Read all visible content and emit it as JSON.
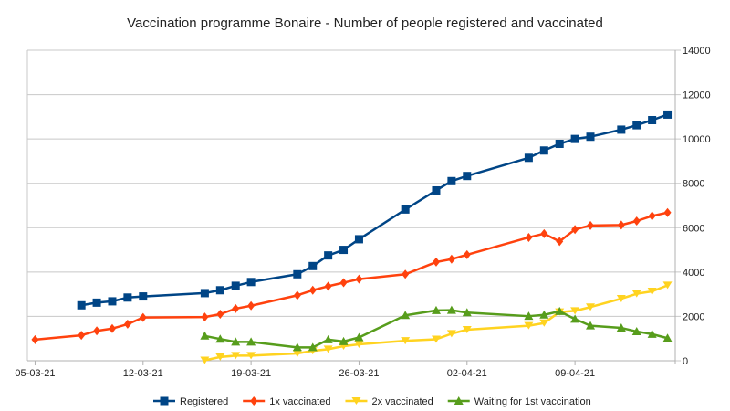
{
  "chart_data": {
    "type": "line",
    "title": "Vaccination programme Bonaire - Number of people registered and vaccinated",
    "xlabel": "",
    "ylabel": "",
    "y_axis_side": "right",
    "ylim": [
      0,
      14000
    ],
    "yticks": [
      0,
      2000,
      4000,
      6000,
      8000,
      10000,
      12000,
      14000
    ],
    "xticks": [
      "05-03-21",
      "12-03-21",
      "19-03-21",
      "26-03-21",
      "02-04-21",
      "09-04-21"
    ],
    "grid": true,
    "legend_position": "bottom",
    "series": [
      {
        "name": "Registered",
        "color": "#004586",
        "marker": "square",
        "x": [
          "08-03-21",
          "09-03-21",
          "10-03-21",
          "11-03-21",
          "12-03-21",
          "16-03-21",
          "17-03-21",
          "18-03-21",
          "19-03-21",
          "22-03-21",
          "23-03-21",
          "24-03-21",
          "25-03-21",
          "26-03-21",
          "29-03-21",
          "31-03-21",
          "01-04-21",
          "02-04-21",
          "06-04-21",
          "07-04-21",
          "08-04-21",
          "09-04-21",
          "10-04-21",
          "12-04-21",
          "13-04-21",
          "14-04-21",
          "15-04-21"
        ],
        "values": [
          2500,
          2620,
          2680,
          2850,
          2900,
          3050,
          3180,
          3380,
          3550,
          3900,
          4270,
          4750,
          5000,
          5480,
          6820,
          7680,
          8100,
          8330,
          9150,
          9480,
          9780,
          10000,
          10100,
          10420,
          10620,
          10850,
          11100
        ]
      },
      {
        "name": "1x vaccinated",
        "color": "#ff420e",
        "marker": "diamond",
        "x": [
          "05-03-21",
          "08-03-21",
          "09-03-21",
          "10-03-21",
          "11-03-21",
          "12-03-21",
          "16-03-21",
          "17-03-21",
          "18-03-21",
          "19-03-21",
          "22-03-21",
          "23-03-21",
          "24-03-21",
          "25-03-21",
          "26-03-21",
          "29-03-21",
          "31-03-21",
          "01-04-21",
          "02-04-21",
          "06-04-21",
          "07-04-21",
          "08-04-21",
          "09-04-21",
          "10-04-21",
          "12-04-21",
          "13-04-21",
          "14-04-21",
          "15-04-21"
        ],
        "values": [
          950,
          1150,
          1350,
          1450,
          1650,
          1950,
          1970,
          2100,
          2350,
          2480,
          2950,
          3180,
          3360,
          3520,
          3680,
          3900,
          4450,
          4580,
          4780,
          5560,
          5730,
          5380,
          5920,
          6100,
          6120,
          6300,
          6530,
          6680
        ]
      },
      {
        "name": "2x vaccinated",
        "color": "#ffd320",
        "marker": "triangle-down",
        "x": [
          "16-03-21",
          "17-03-21",
          "18-03-21",
          "19-03-21",
          "22-03-21",
          "23-03-21",
          "24-03-21",
          "25-03-21",
          "26-03-21",
          "29-03-21",
          "31-03-21",
          "01-04-21",
          "02-04-21",
          "06-04-21",
          "07-04-21",
          "08-04-21",
          "09-04-21",
          "10-04-21",
          "12-04-21",
          "13-04-21",
          "14-04-21",
          "15-04-21"
        ],
        "values": [
          20,
          170,
          230,
          230,
          330,
          450,
          520,
          660,
          740,
          900,
          970,
          1220,
          1400,
          1580,
          1700,
          2200,
          2250,
          2420,
          2800,
          3020,
          3130,
          3400
        ]
      },
      {
        "name": "Waiting for 1st vaccination",
        "color": "#579d1c",
        "marker": "triangle-up",
        "x": [
          "16-03-21",
          "17-03-21",
          "18-03-21",
          "19-03-21",
          "22-03-21",
          "23-03-21",
          "24-03-21",
          "25-03-21",
          "26-03-21",
          "29-03-21",
          "31-03-21",
          "01-04-21",
          "02-04-21",
          "06-04-21",
          "07-04-21",
          "08-04-21",
          "09-04-21",
          "10-04-21",
          "12-04-21",
          "13-04-21",
          "14-04-21",
          "15-04-21"
        ],
        "values": [
          1120,
          980,
          850,
          850,
          600,
          600,
          950,
          870,
          1050,
          2050,
          2270,
          2280,
          2170,
          2010,
          2070,
          2230,
          1880,
          1580,
          1480,
          1320,
          1200,
          1020
        ]
      }
    ]
  }
}
